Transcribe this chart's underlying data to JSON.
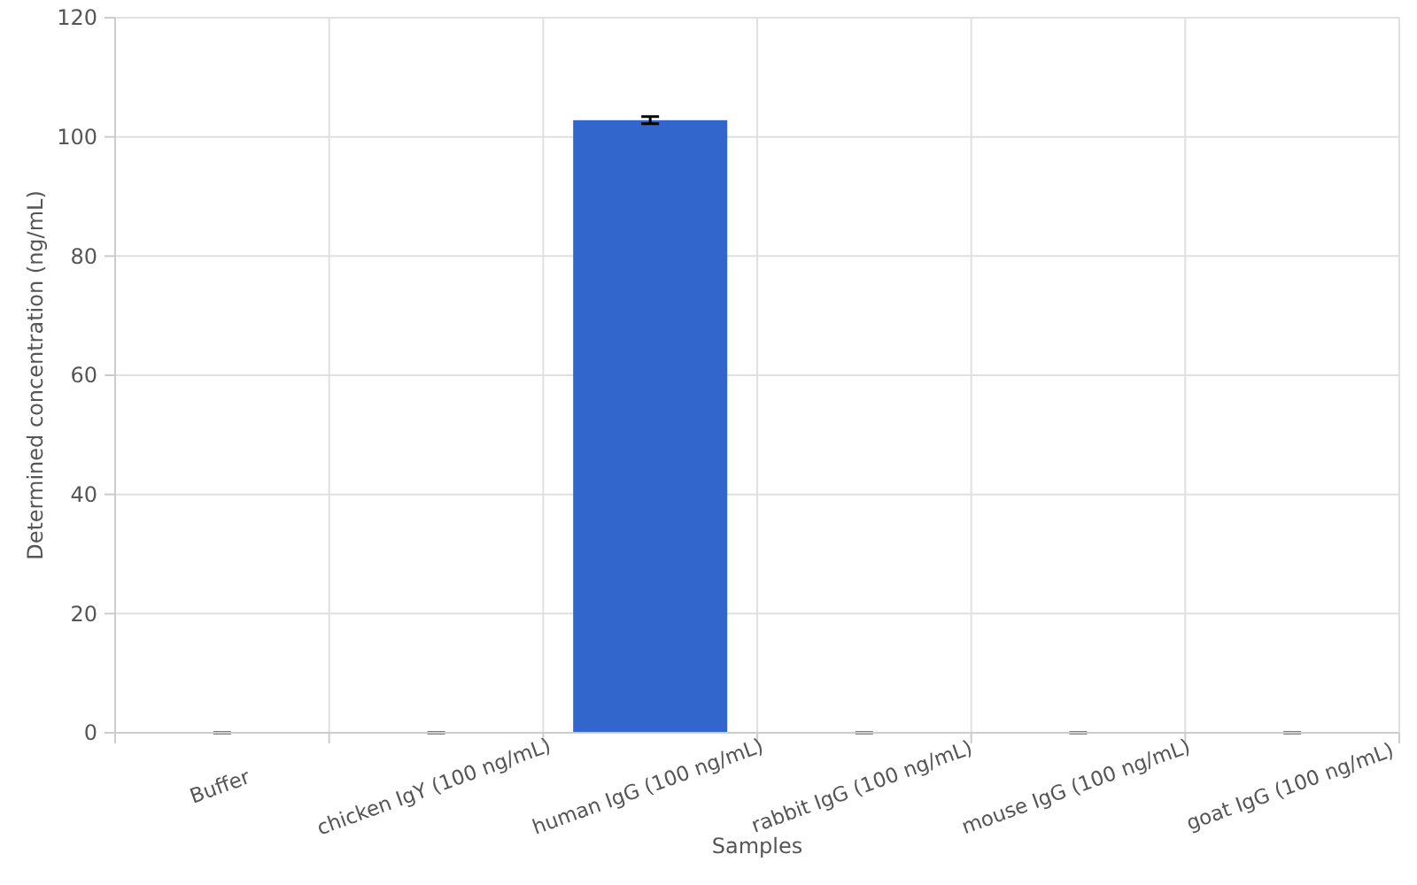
{
  "chart_data": {
    "type": "bar",
    "xlabel": "Samples",
    "ylabel": "Determined concentration (ng/mL)",
    "categories": [
      "Buffer",
      "chicken IgY (100 ng/mL)",
      "human IgG (100 ng/mL)",
      "rabbit IgG (100 ng/mL)",
      "mouse IgG (100 ng/mL)",
      "goat IgG (100 ng/mL)"
    ],
    "values": [
      0,
      0,
      102.8,
      0,
      0,
      0
    ],
    "errors": [
      0,
      0,
      0.6,
      0,
      0,
      0
    ],
    "color": "#3366cc",
    "ylim": [
      0,
      120
    ],
    "yticks": [
      0,
      20,
      40,
      60,
      80,
      100,
      120
    ],
    "grid": true
  }
}
